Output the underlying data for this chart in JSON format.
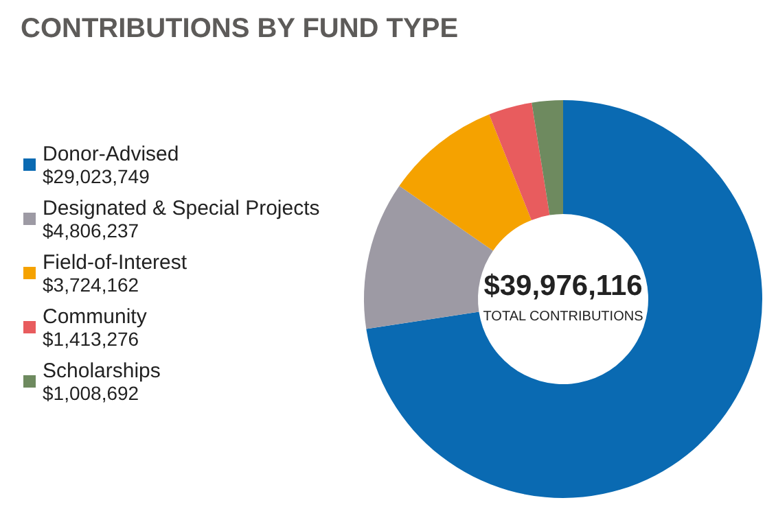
{
  "chart_data": {
    "type": "donut",
    "title": "CONTRIBUTIONS BY FUND TYPE",
    "categories": [
      "Donor-Advised",
      "Designated & Special Projects",
      "Field-of-Interest",
      "Community",
      "Scholarships"
    ],
    "values": [
      29023749,
      4806237,
      3724162,
      1413276,
      1008692
    ],
    "value_labels": [
      "$29,023,749",
      "$4,806,237",
      "$3,724,162",
      "$1,413,276",
      "$1,008,692"
    ],
    "colors": [
      "#0a6ab2",
      "#9d9aa4",
      "#f5a200",
      "#e85c5e",
      "#6e8a5f"
    ],
    "annotations": [
      "$39,976,116",
      "TOTAL CONTRIBUTIONS"
    ],
    "legend": "left"
  }
}
